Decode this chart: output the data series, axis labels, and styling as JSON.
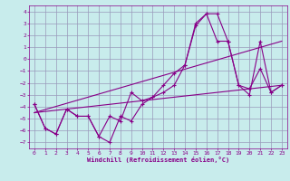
{
  "background_color": "#c8ecec",
  "grid_color": "#9999bb",
  "line_color": "#880088",
  "xlabel": "Windchill (Refroidissement éolien,°C)",
  "xlim": [
    -0.5,
    23.5
  ],
  "ylim": [
    -7.5,
    4.5
  ],
  "yticks": [
    -7,
    -6,
    -5,
    -4,
    -3,
    -2,
    -1,
    0,
    1,
    2,
    3,
    4
  ],
  "xticks": [
    0,
    1,
    2,
    3,
    4,
    5,
    6,
    7,
    8,
    9,
    10,
    11,
    12,
    13,
    14,
    15,
    16,
    17,
    18,
    19,
    20,
    21,
    22,
    23
  ],
  "series1_x": [
    0,
    1,
    2,
    3,
    4,
    5,
    6,
    7,
    8,
    9,
    10,
    11,
    12,
    13,
    14,
    15,
    16,
    17,
    18,
    19,
    20,
    21,
    22,
    23
  ],
  "series1_y": [
    -3.8,
    -5.8,
    -6.3,
    -4.2,
    -4.8,
    -4.8,
    -6.5,
    -4.8,
    -5.2,
    -2.8,
    -3.5,
    -3.2,
    -2.2,
    -1.2,
    -0.5,
    3.0,
    3.8,
    3.8,
    1.5,
    -2.2,
    -2.5,
    -0.8,
    -2.8,
    -2.2
  ],
  "series2_x": [
    0,
    1,
    2,
    3,
    4,
    5,
    6,
    7,
    8,
    9,
    10,
    11,
    12,
    13,
    14,
    15,
    16,
    17,
    18,
    19,
    20,
    21,
    22,
    23
  ],
  "series2_y": [
    -3.8,
    -5.8,
    -6.3,
    -4.2,
    -4.8,
    -4.8,
    -6.5,
    -7.0,
    -4.8,
    -5.2,
    -3.8,
    -3.2,
    -2.8,
    -2.2,
    -0.5,
    2.8,
    3.8,
    1.5,
    1.5,
    -2.2,
    -3.0,
    1.5,
    -2.8,
    -2.2
  ],
  "trend1_x": [
    0,
    23
  ],
  "trend1_y": [
    -4.5,
    -2.2
  ],
  "trend2_x": [
    0,
    23
  ],
  "trend2_y": [
    -4.5,
    1.5
  ]
}
